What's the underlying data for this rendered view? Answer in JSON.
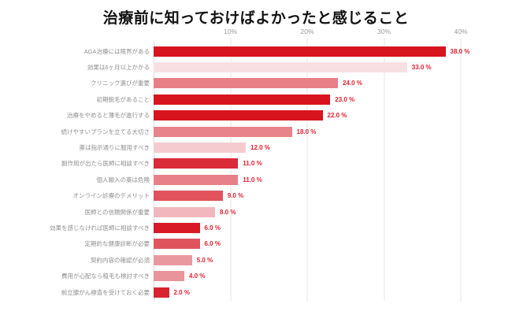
{
  "title": "治療前に知っておけばよかったと感じること",
  "chart_data": {
    "type": "bar",
    "orientation": "horizontal",
    "title": "治療前に知っておけばよかったと感じること",
    "xlabel": "",
    "ylabel": "",
    "x_unit": "%",
    "xlim": [
      0,
      40
    ],
    "x_ticks": [
      "10%",
      "20%",
      "30%",
      "40%"
    ],
    "x_tick_values": [
      10,
      20,
      30,
      40
    ],
    "grid": true,
    "legend": false,
    "categories": [
      "AGA治療には限界がある",
      "効果は6ヶ月以上かかる",
      "クリニック選びが重要",
      "初期脱毛があること",
      "治療をやめると薄毛が進行する",
      "続けやすいプランを立てる大切さ",
      "薬は指示通りに服用すべき",
      "副作用が出たら医師に相談すべき",
      "個人輸入の薬は危険",
      "オンライン診療のデメリット",
      "医師との信頼関係が重要",
      "効果を感じなければ医師に相談すべき",
      "定期的な健康診断が必要",
      "契約内容の確認が必須",
      "費用が心配なら植毛も検討すべき",
      "前立腺がん検査を受けておく必要"
    ],
    "values": [
      38,
      33,
      24,
      23,
      22,
      18,
      12,
      11,
      11,
      9,
      8,
      6,
      6,
      5,
      4,
      2
    ],
    "value_labels": [
      "38.0 %",
      "33.0 %",
      "24.0 %",
      "23.0 %",
      "22.0 %",
      "18.0 %",
      "12.0 %",
      "11.0 %",
      "11.0 %",
      "9.0 %",
      "8.0 %",
      "6.0 %",
      "6.0 %",
      "5.0 %",
      "4.0 %",
      "2.0 %"
    ],
    "bar_colors": [
      "#d8141f",
      "#f8dfe2",
      "#e77f87",
      "#d8141f",
      "#d8141f",
      "#e8838b",
      "#f5cbd0",
      "#d92b38",
      "#e8808a",
      "#e1525d",
      "#f2b6bd",
      "#d81a26",
      "#e0545e",
      "#ea98a0",
      "#e9939b",
      "#d92430"
    ],
    "value_label_color": "#e12130",
    "category_label_color": "#8e8e8e",
    "tick_label_color": "#9a9a9a",
    "gridline_color": "#e6e6e6",
    "axis_line_color": "#d9d9d9",
    "background_color": "#ffffff"
  }
}
